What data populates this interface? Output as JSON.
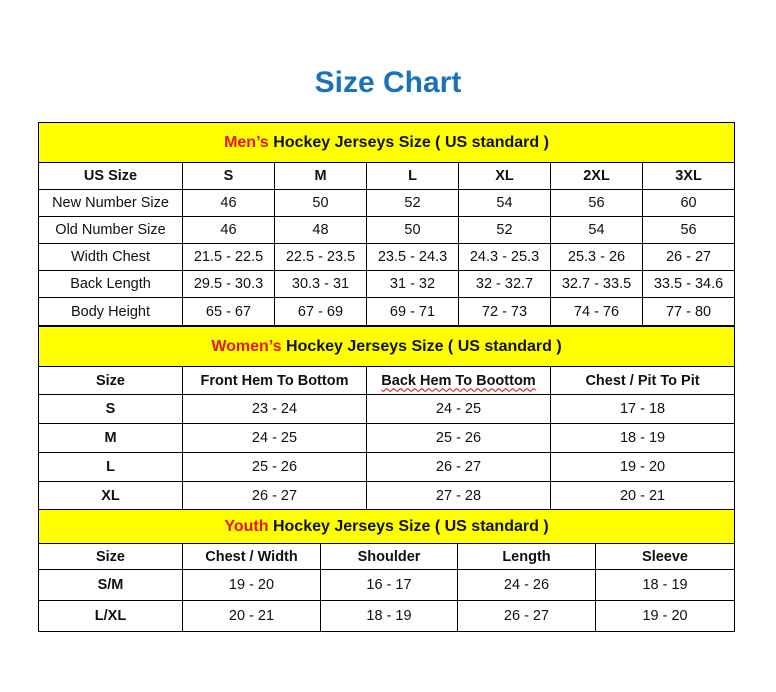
{
  "title": "Size Chart",
  "colors": {
    "title": "#1a72bb",
    "header_bg": "#ffff00",
    "highlight": "#e8141b"
  },
  "men": {
    "highlight": "Men’s",
    "heading": " Hockey Jerseys Size ( US standard )",
    "columns": [
      "US Size",
      "S",
      "M",
      "L",
      "XL",
      "2XL",
      "3XL"
    ],
    "rows": [
      [
        "New Number Size",
        "46",
        "50",
        "52",
        "54",
        "56",
        "60"
      ],
      [
        "Old Number Size",
        "46",
        "48",
        "50",
        "52",
        "54",
        "56"
      ],
      [
        "Width Chest",
        "21.5 - 22.5",
        "22.5 - 23.5",
        "23.5 - 24.3",
        "24.3 - 25.3",
        "25.3 - 26",
        "26 - 27"
      ],
      [
        "Back Length",
        "29.5 - 30.3",
        "30.3 - 31",
        "31 - 32",
        "32 - 32.7",
        "32.7 - 33.5",
        "33.5 - 34.6"
      ],
      [
        "Body Height",
        "65 - 67",
        "67 - 69",
        "69 - 71",
        "72 - 73",
        "74 - 76",
        "77 - 80"
      ]
    ]
  },
  "women": {
    "highlight": "Women’s",
    "heading": " Hockey Jerseys Size ( US standard )",
    "columns": [
      "Size",
      "Front Hem To Bottom",
      "Back Hem To Boottom",
      "Chest / Pit To Pit"
    ],
    "rows": [
      [
        "S",
        "23 - 24",
        "24 - 25",
        "17 - 18"
      ],
      [
        "M",
        "24 - 25",
        "25 - 26",
        "18 - 19"
      ],
      [
        "L",
        "25 - 26",
        "26 - 27",
        "19 - 20"
      ],
      [
        "XL",
        "26 - 27",
        "27 - 28",
        "20 - 21"
      ]
    ]
  },
  "youth": {
    "highlight": "Youth",
    "heading": " Hockey Jerseys Size ( US standard )",
    "columns": [
      "Size",
      "Chest / Width",
      "Shoulder",
      "Length",
      "Sleeve"
    ],
    "rows": [
      [
        "S/M",
        "19 - 20",
        "16 - 17",
        "24 - 26",
        "18 - 19"
      ],
      [
        "L/XL",
        "20 - 21",
        "18 - 19",
        "26 - 27",
        "19 - 20"
      ]
    ]
  }
}
